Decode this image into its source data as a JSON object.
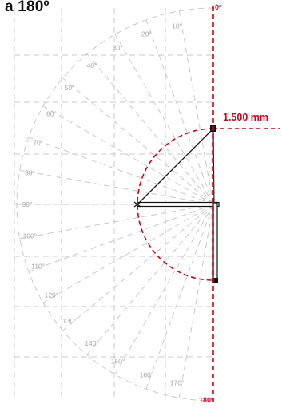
{
  "title": "a 180º",
  "radius_label": "1.500 mm",
  "angle_labels": [
    "10°",
    "20°",
    "30°",
    "40°",
    "50°",
    "60°",
    "70°",
    "80°",
    "90°",
    "100°",
    "110°",
    "120°",
    "130°",
    "140°",
    "150°",
    "160°",
    "170°"
  ],
  "top_marker": "0º",
  "bottom_marker": "180º",
  "colors": {
    "accent": "#d0021b",
    "grid": "#c8c8c8",
    "label": "#a8a8a8",
    "arm": "#111111"
  }
}
